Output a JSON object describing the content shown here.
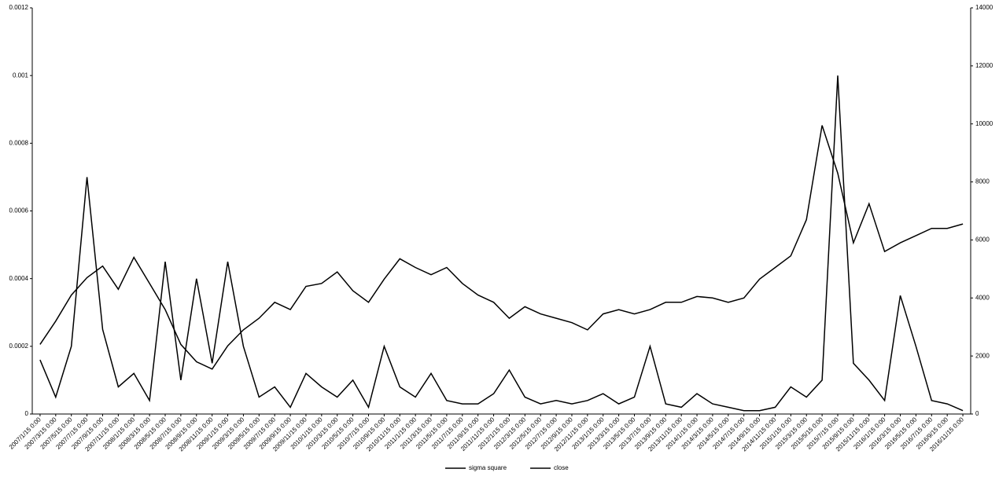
{
  "chart_data": {
    "type": "line",
    "categories": [
      "2007/1/15 0:00",
      "2007/3/15 0:00",
      "2007/5/15 0:00",
      "2007/7/15 0:00",
      "2007/9/15 0:00",
      "2007/11/15 0:00",
      "2008/1/15 0:00",
      "2008/3/15 0:00",
      "2008/5/15 0:00",
      "2008/7/15 0:00",
      "2008/9/15 0:00",
      "2008/11/15 0:00",
      "2009/1/15 0:00",
      "2009/3/15 0:00",
      "2009/5/15 0:00",
      "2009/7/15 0:00",
      "2009/9/15 0:00",
      "2009/11/15 0:00",
      "2010/1/15 0:00",
      "2010/3/15 0:00",
      "2010/5/15 0:00",
      "2010/7/15 0:00",
      "2010/9/15 0:00",
      "2010/11/15 0:00",
      "2011/1/15 0:00",
      "2011/3/15 0:00",
      "2011/5/15 0:00",
      "2011/7/15 0:00",
      "2011/9/15 0:00",
      "2011/11/15 0:00",
      "2012/1/15 0:00",
      "2012/3/15 0:00",
      "2012/5/15 0:00",
      "2012/7/15 0:00",
      "2012/9/15 0:00",
      "2012/11/15 0:00",
      "2013/1/15 0:00",
      "2013/3/15 0:00",
      "2013/5/15 0:00",
      "2013/7/15 0:00",
      "2013/9/15 0:00",
      "2013/11/15 0:00",
      "2014/1/15 0:00",
      "2014/3/15 0:00",
      "2014/5/15 0:00",
      "2014/7/15 0:00",
      "2014/9/15 0:00",
      "2014/11/15 0:00",
      "2015/1/15 0:00",
      "2015/3/15 0:00",
      "2015/5/15 0:00",
      "2015/7/15 0:00",
      "2015/9/15 0:00",
      "2015/11/15 0:00",
      "2016/1/15 0:00",
      "2016/3/15 0:00",
      "2016/5/15 0:00",
      "2016/7/15 0:00",
      "2016/9/15 0:00",
      "2016/11/15 0:00"
    ],
    "series": [
      {
        "name": "sigma square",
        "color": "#000000",
        "axis": "y",
        "values": [
          0.00016,
          5e-05,
          0.0002,
          0.0007,
          0.00025,
          8e-05,
          0.00012,
          4e-05,
          0.00045,
          0.0001,
          0.0004,
          0.00015,
          0.00045,
          0.0002,
          5e-05,
          8e-05,
          2e-05,
          0.00012,
          8e-05,
          5e-05,
          0.0001,
          2e-05,
          0.0002,
          8e-05,
          5e-05,
          0.00012,
          4e-05,
          3e-05,
          3e-05,
          6e-05,
          0.00013,
          5e-05,
          3e-05,
          4e-05,
          3e-05,
          4e-05,
          6e-05,
          3e-05,
          5e-05,
          0.0002,
          3e-05,
          2e-05,
          6e-05,
          3e-05,
          2e-05,
          1e-05,
          1e-05,
          2e-05,
          8e-05,
          5e-05,
          0.0001,
          0.001,
          0.00015,
          0.0001,
          4e-05,
          0.00035,
          0.0002,
          4e-05,
          3e-05,
          1e-05
        ]
      },
      {
        "name": "close",
        "color": "#000000",
        "axis": "y2",
        "values": [
          2400,
          3200,
          4100,
          4700,
          5100,
          4300,
          5400,
          4500,
          3600,
          2400,
          1800,
          1550,
          2350,
          2900,
          3300,
          3850,
          3600,
          4400,
          4500,
          4900,
          4250,
          3850,
          4650,
          5350,
          5050,
          4800,
          5050,
          4500,
          4100,
          3850,
          3300,
          3700,
          3450,
          3300,
          3150,
          2900,
          3450,
          3600,
          3450,
          3600,
          3850,
          3850,
          4050,
          4000,
          3850,
          4000,
          4650,
          5050,
          5450,
          6700,
          9950,
          8300,
          5900,
          7250,
          5600,
          5900,
          6150,
          6400,
          6400,
          6550
        ]
      }
    ],
    "ylim": [
      0,
      0.0012
    ],
    "yticks": [
      0,
      0.0002,
      0.0004,
      0.0006,
      0.0008,
      0.001,
      0.0012
    ],
    "y2lim": [
      0,
      14000
    ],
    "y2ticks": [
      0,
      2000,
      4000,
      6000,
      8000,
      10000,
      12000,
      14000
    ],
    "legend": "bottom"
  }
}
